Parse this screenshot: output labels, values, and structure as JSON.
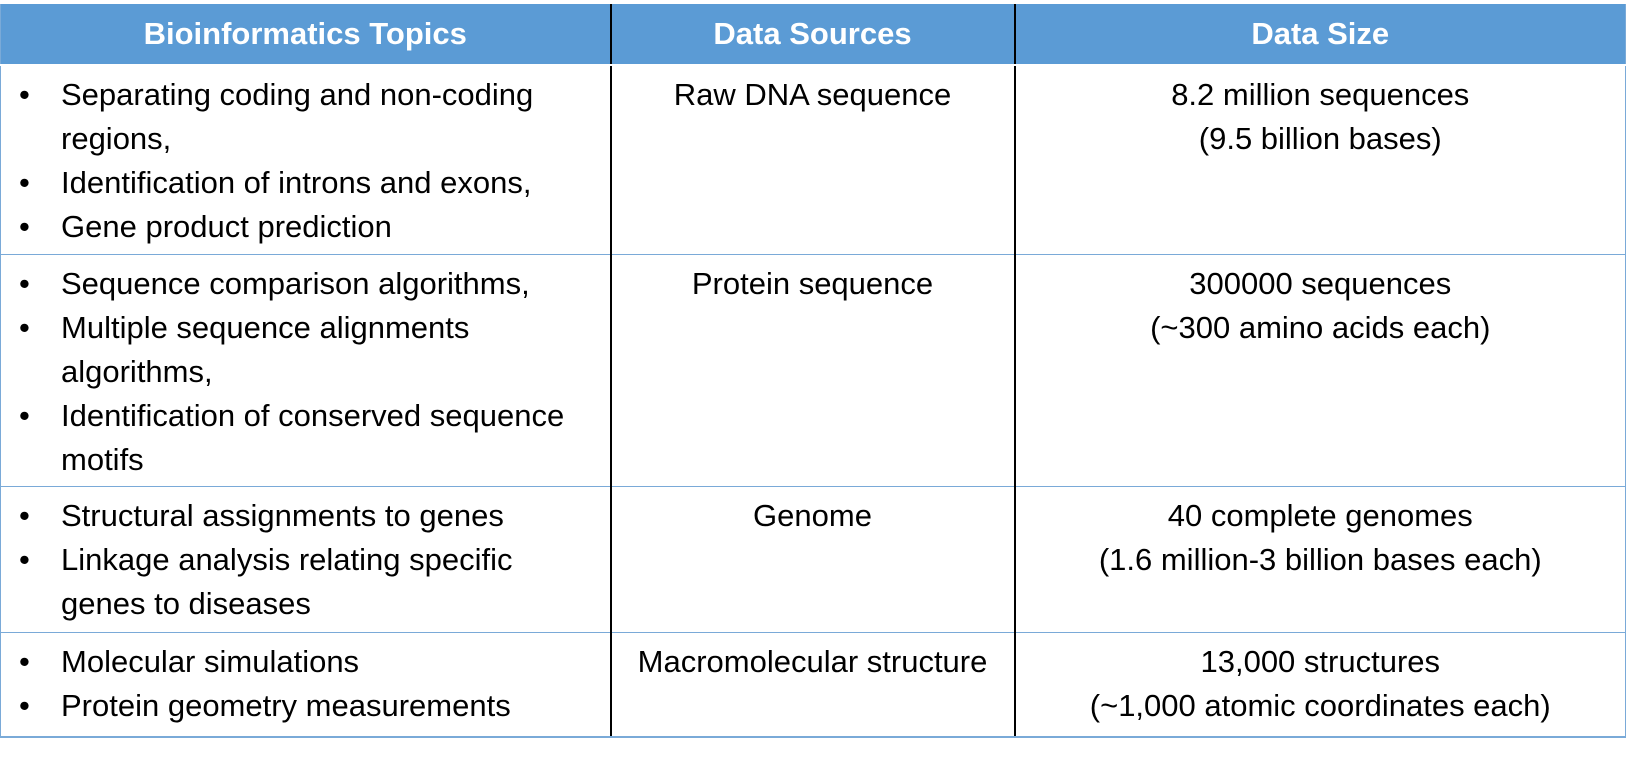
{
  "headers": [
    "Bioinformatics Topics",
    "Data Sources",
    "Data Size"
  ],
  "rows": [
    {
      "topics": [
        "Separating coding and non-coding regions,",
        "Identification of introns and exons,",
        "Gene product prediction"
      ],
      "source": "Raw DNA sequence",
      "size": [
        "8.2 million sequences",
        "(9.5 billion bases)"
      ]
    },
    {
      "topics": [
        "Sequence comparison algorithms,",
        "Multiple sequence alignments algorithms,",
        "Identification of conserved sequence motifs"
      ],
      "source": "Protein sequence",
      "size": [
        "300000 sequences",
        "(~300 amino acids each)"
      ]
    },
    {
      "topics": [
        "Structural assignments to genes",
        "Linkage analysis relating specific genes to diseases"
      ],
      "source": "Genome",
      "size": [
        "40 complete genomes",
        "(1.6 million-3 billion bases each)"
      ]
    },
    {
      "topics": [
        "Molecular simulations",
        "Protein geometry measurements"
      ],
      "source": "Macromolecular structure",
      "size": [
        "13,000 structures",
        "(~1,000 atomic coordinates each)"
      ]
    }
  ],
  "colors": {
    "header_bg": "#5b9bd5",
    "header_text": "#ffffff",
    "row_border": "#7aaad8",
    "column_divider": "#000000"
  }
}
